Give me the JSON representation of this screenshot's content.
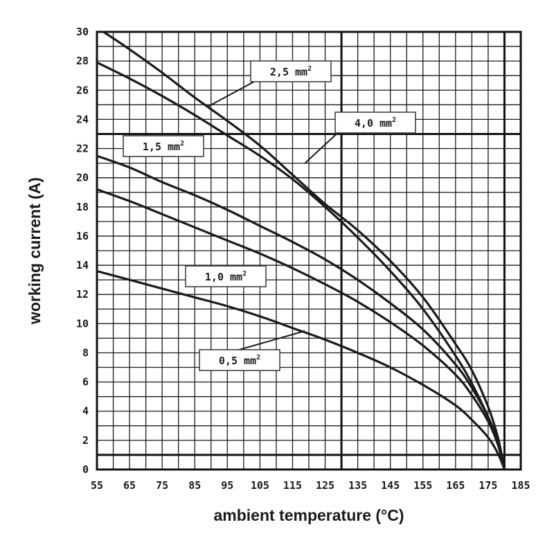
{
  "chart_data": {
    "type": "line",
    "xlabel": "ambient temperature (°C)",
    "ylabel": "working current (A)",
    "xlim": [
      55,
      185
    ],
    "ylim": [
      0,
      30
    ],
    "x_ticks": [
      "55",
      "65",
      "75",
      "85",
      "95",
      "105",
      "115",
      "125",
      "135",
      "145",
      "155",
      "165",
      "175",
      "185"
    ],
    "y_ticks": [
      "0",
      "2",
      "4",
      "6",
      "8",
      "10",
      "12",
      "14",
      "16",
      "18",
      "20",
      "22",
      "24",
      "26",
      "28",
      "30"
    ],
    "grid": true,
    "series": [
      {
        "name": "2,5 mm2",
        "label_main": "2,5 mm",
        "label_sup": "2",
        "x": [
          57,
          65,
          75,
          85,
          95,
          105,
          115,
          125,
          135,
          145,
          155,
          165,
          170,
          175,
          178,
          180
        ],
        "y": [
          30,
          28.8,
          27.2,
          25.5,
          23.9,
          22.2,
          20.2,
          18.2,
          16.4,
          14.3,
          11.8,
          8.6,
          6.8,
          4.3,
          2.2,
          0
        ]
      },
      {
        "name": "4,0 mm2",
        "label_main": "4,0 mm",
        "label_sup": "2",
        "x": [
          55,
          65,
          75,
          85,
          95,
          105,
          115,
          125,
          135,
          145,
          155,
          165,
          170,
          175,
          178,
          180
        ],
        "y": [
          27.9,
          26.8,
          25.6,
          24.3,
          22.9,
          21.5,
          19.9,
          18.0,
          15.9,
          13.6,
          11.0,
          7.8,
          5.9,
          3.6,
          1.8,
          0
        ]
      },
      {
        "name": "1,5 mm2",
        "label_main": "1,5 mm",
        "label_sup": "2",
        "x": [
          55,
          65,
          75,
          85,
          95,
          105,
          115,
          125,
          135,
          145,
          155,
          165,
          170,
          175,
          178,
          180
        ],
        "y": [
          21.5,
          20.7,
          19.7,
          18.8,
          17.8,
          16.7,
          15.6,
          14.4,
          13.0,
          11.4,
          9.6,
          7.2,
          5.6,
          3.6,
          1.9,
          0
        ]
      },
      {
        "name": "1,0 mm2",
        "label_main": "1,0 mm",
        "label_sup": "2",
        "x": [
          55,
          65,
          75,
          85,
          95,
          105,
          115,
          125,
          135,
          145,
          155,
          165,
          170,
          175,
          178,
          180
        ],
        "y": [
          19.2,
          18.4,
          17.5,
          16.6,
          15.7,
          14.8,
          13.8,
          12.7,
          11.5,
          10.1,
          8.5,
          6.5,
          5.1,
          3.3,
          1.7,
          0
        ]
      },
      {
        "name": "0,5 mm2",
        "label_main": "0,5 mm",
        "label_sup": "2",
        "x": [
          55,
          65,
          75,
          85,
          95,
          105,
          115,
          125,
          135,
          145,
          155,
          165,
          170,
          175,
          178,
          180
        ],
        "y": [
          13.6,
          13.0,
          12.4,
          11.8,
          11.2,
          10.5,
          9.7,
          8.9,
          8.0,
          7.0,
          5.8,
          4.4,
          3.4,
          2.2,
          1.1,
          0
        ]
      }
    ]
  }
}
